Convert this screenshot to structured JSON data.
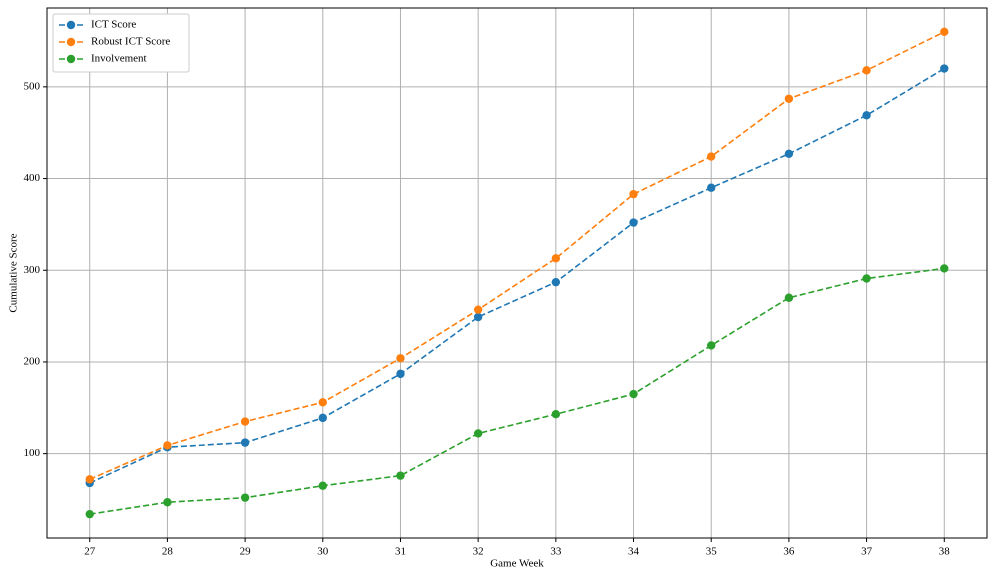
{
  "chart_data": {
    "type": "line",
    "xlabel": "Game Week",
    "ylabel": "Cumulative Score",
    "x": [
      27,
      28,
      29,
      30,
      31,
      32,
      33,
      34,
      35,
      36,
      37,
      38
    ],
    "series": [
      {
        "name": "ICT Score",
        "color": "#1f77b4",
        "values": [
          68,
          107,
          112,
          139,
          187,
          249,
          287,
          352,
          390,
          427,
          469,
          520
        ]
      },
      {
        "name": "Robust ICT Score",
        "color": "#ff7f0e",
        "values": [
          72,
          109,
          135,
          156,
          204,
          257,
          313,
          383,
          424,
          487,
          518,
          560
        ]
      },
      {
        "name": "Involvement",
        "color": "#2ca02c",
        "values": [
          34,
          47,
          52,
          65,
          76,
          122,
          143,
          165,
          218,
          270,
          291,
          302
        ]
      }
    ],
    "xlim": [
      26.45,
      38.55
    ],
    "ylim": [
      8,
      586
    ],
    "xticks": [
      27,
      28,
      29,
      30,
      31,
      32,
      33,
      34,
      35,
      36,
      37,
      38
    ],
    "yticks": [
      100,
      200,
      300,
      400,
      500
    ],
    "grid": true,
    "legend": "upper left",
    "line_style": "dashed"
  }
}
